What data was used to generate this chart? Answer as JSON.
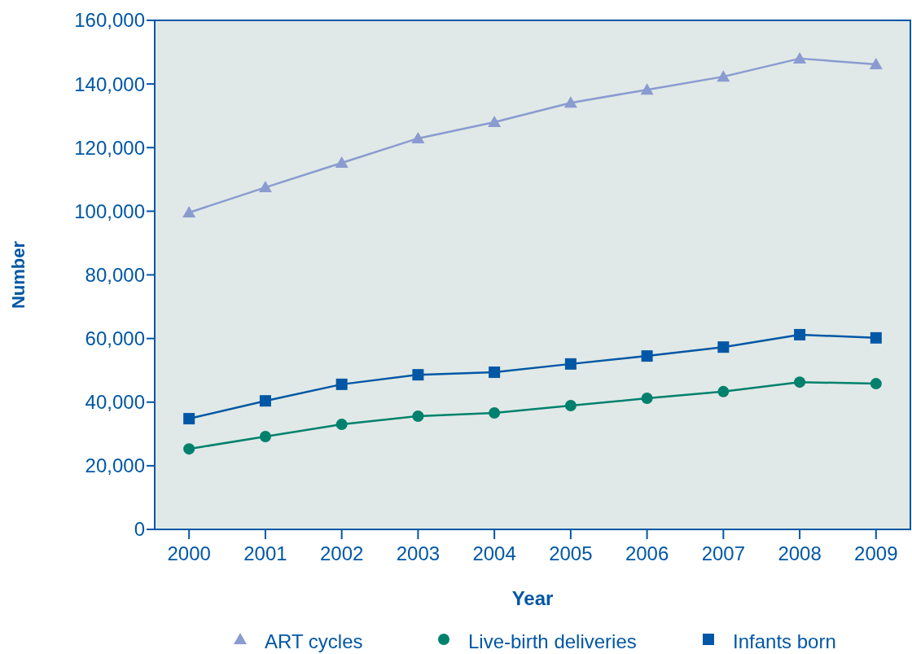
{
  "chart_data": {
    "type": "line",
    "xlabel": "Year",
    "ylabel": "Number",
    "categories": [
      "2000",
      "2001",
      "2002",
      "2003",
      "2004",
      "2005",
      "2006",
      "2007",
      "2008",
      "2009"
    ],
    "series": [
      {
        "name": "ART cycles",
        "color": "#8a9bd0",
        "marker": "triangle",
        "values": [
          99600,
          107500,
          115200,
          122900,
          128000,
          134100,
          138200,
          142300,
          148000,
          146200
        ]
      },
      {
        "name": "Live-birth deliveries",
        "color": "#00816d",
        "marker": "circle",
        "values": [
          25300,
          29200,
          33000,
          35600,
          36600,
          38900,
          41200,
          43300,
          46300,
          45800
        ]
      },
      {
        "name": "Infants born",
        "color": "#0057a5",
        "marker": "square",
        "values": [
          34800,
          40400,
          45600,
          48600,
          49400,
          52000,
          54500,
          57300,
          61200,
          60200
        ]
      }
    ],
    "ylim": [
      0,
      160000
    ],
    "yticks": [
      {
        "value": 0,
        "label": "0"
      },
      {
        "value": 20000,
        "label": "20,000"
      },
      {
        "value": 40000,
        "label": "40,000"
      },
      {
        "value": 60000,
        "label": "60,000"
      },
      {
        "value": 80000,
        "label": "80,000"
      },
      {
        "value": 100000,
        "label": "100,000"
      },
      {
        "value": 120000,
        "label": "120,000"
      },
      {
        "value": 140000,
        "label": "140,000"
      },
      {
        "value": 160000,
        "label": "160,000"
      }
    ],
    "grid": false,
    "legend": "bottom",
    "line_style": "solid"
  }
}
